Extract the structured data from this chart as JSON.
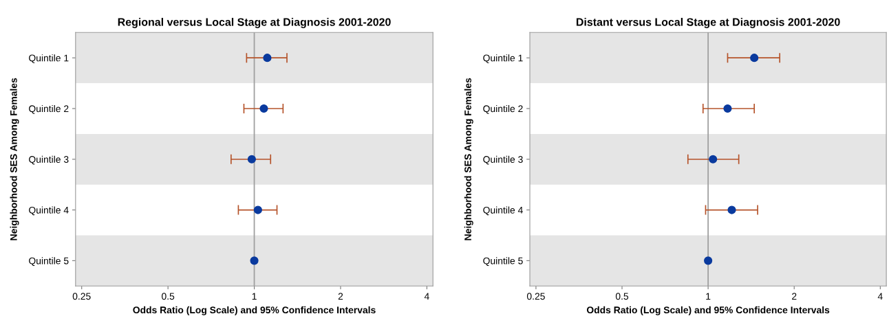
{
  "chart_data": [
    {
      "type": "scatter",
      "orientation": "horizontal",
      "title": "Regional versus Local Stage at Diagnosis 2001-2020",
      "xlabel": "Odds Ratio (Log Scale) and 95% Confidence Intervals",
      "ylabel": "Neighborhood SES Among Females",
      "categories": [
        "Quintile 1",
        "Quintile 2",
        "Quintile 3",
        "Quintile 4",
        "Quintile 5"
      ],
      "series": [
        {
          "color": "#0a3a9e",
          "values": [
            1.11,
            1.08,
            0.98,
            1.03,
            1.0
          ],
          "errors": [
            [
              0.94,
              1.3
            ],
            [
              0.92,
              1.26
            ],
            [
              0.83,
              1.14
            ],
            [
              0.88,
              1.2
            ],
            null
          ]
        }
      ],
      "log": "x",
      "xlim": [
        0.238,
        4.2
      ],
      "xticks": [
        0.25,
        0.5,
        1,
        2,
        4
      ],
      "marker": "circle",
      "grid": false,
      "legend": false,
      "ref_lines": [
        {
          "axis": "x",
          "value": 1,
          "color": "#a0a0a0"
        }
      ],
      "bands": [
        {
          "axis": "y",
          "from": "Quintile 1",
          "to": "Quintile 1",
          "color": "#e5e5e5"
        },
        {
          "axis": "y",
          "from": "Quintile 3",
          "to": "Quintile 3",
          "color": "#e5e5e5"
        },
        {
          "axis": "y",
          "from": "Quintile 5",
          "to": "Quintile 5",
          "color": "#e5e5e5"
        }
      ]
    },
    {
      "type": "scatter",
      "orientation": "horizontal",
      "title": "Distant versus Local Stage at Diagnosis 2001-2020",
      "xlabel": "Odds Ratio (Log Scale) and 95% Confidence Intervals",
      "ylabel": "Neighborhood SES Among Females",
      "categories": [
        "Quintile 1",
        "Quintile 2",
        "Quintile 3",
        "Quintile 4",
        "Quintile 5"
      ],
      "series": [
        {
          "color": "#0a3a9e",
          "values": [
            1.45,
            1.17,
            1.04,
            1.21,
            1.0
          ],
          "errors": [
            [
              1.17,
              1.78
            ],
            [
              0.96,
              1.45
            ],
            [
              0.85,
              1.28
            ],
            [
              0.98,
              1.49
            ],
            null
          ]
        }
      ],
      "log": "x",
      "xlim": [
        0.238,
        4.2
      ],
      "xticks": [
        0.25,
        0.5,
        1,
        2,
        4
      ],
      "marker": "circle",
      "grid": false,
      "legend": false,
      "ref_lines": [
        {
          "axis": "x",
          "value": 1,
          "color": "#a0a0a0"
        }
      ],
      "bands": [
        {
          "axis": "y",
          "from": "Quintile 1",
          "to": "Quintile 1",
          "color": "#e5e5e5"
        },
        {
          "axis": "y",
          "from": "Quintile 3",
          "to": "Quintile 3",
          "color": "#e5e5e5"
        },
        {
          "axis": "y",
          "from": "Quintile 5",
          "to": "Quintile 5",
          "color": "#e5e5e5"
        }
      ]
    }
  ]
}
